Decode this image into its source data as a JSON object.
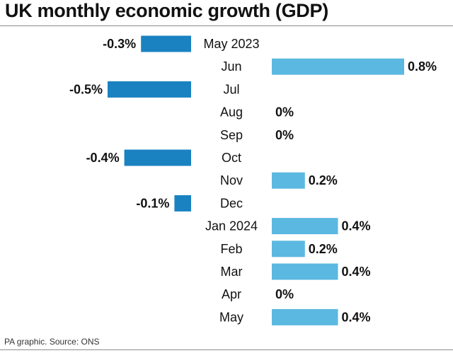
{
  "title": "UK monthly economic growth (GDP)",
  "source": "PA graphic. Source: ONS",
  "colors": {
    "positive": "#5bb8e0",
    "negative": "#1a82c0",
    "text": "#111111"
  },
  "chart_data": {
    "type": "bar",
    "orientation": "horizontal",
    "categories": [
      "May 2023",
      "Jun",
      "Jul",
      "Aug",
      "Sep",
      "Oct",
      "Nov",
      "Dec",
      "Jan 2024",
      "Feb",
      "Mar",
      "Apr",
      "May"
    ],
    "values": [
      -0.3,
      0.8,
      -0.5,
      0,
      0,
      -0.4,
      0.2,
      -0.1,
      0.4,
      0.2,
      0.4,
      0,
      0.4
    ],
    "value_labels": [
      "-0.3%",
      "0.8%",
      "-0.5%",
      "0%",
      "0%",
      "-0.4%",
      "0.2%",
      "-0.1%",
      "0.4%",
      "0.2%",
      "0.4%",
      "0%",
      "0.4%"
    ],
    "xlim": [
      -0.5,
      0.8
    ],
    "grid": false,
    "legend": "none"
  }
}
